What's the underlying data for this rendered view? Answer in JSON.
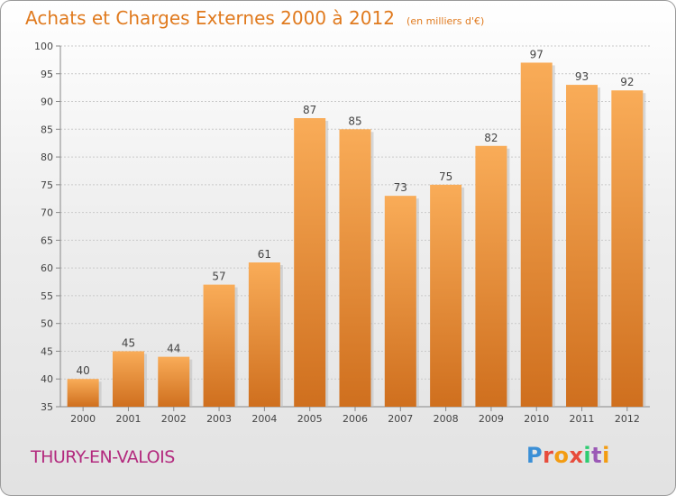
{
  "header": {
    "title": "Achats et Charges Externes 2000 à 2012",
    "unit": "(en milliers d'€)"
  },
  "footer": {
    "town": "THURY-EN-VALOIS",
    "logo": "Proxiti"
  },
  "colors": {
    "bar_light": "#f7a64f",
    "bar_dark": "#d0711f",
    "title": "#e07a1e",
    "town": "#b32a7e"
  },
  "chart_data": {
    "type": "bar",
    "categories": [
      "2000",
      "2001",
      "2002",
      "2003",
      "2004",
      "2005",
      "2006",
      "2007",
      "2008",
      "2009",
      "2010",
      "2011",
      "2012"
    ],
    "values": [
      40,
      45,
      44,
      57,
      61,
      87,
      85,
      73,
      75,
      82,
      97,
      93,
      92
    ],
    "title": "Achats et Charges Externes 2000 à 2012",
    "xlabel": "",
    "ylabel": "",
    "ylim": [
      35,
      100
    ],
    "yticks": [
      35,
      40,
      45,
      50,
      55,
      60,
      65,
      70,
      75,
      80,
      85,
      90,
      95,
      100
    ],
    "grid": true,
    "legend": "none"
  }
}
